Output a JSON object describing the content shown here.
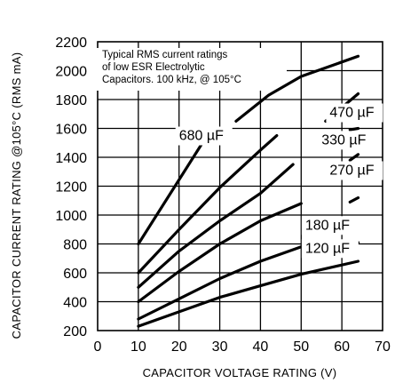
{
  "chart_data": {
    "type": "line",
    "title": "",
    "xlabel": "CAPACITOR VOLTAGE RATING (V)",
    "ylabel": "CAPACITOR CURRENT RATING @105°C (RMS mA)",
    "xlim": [
      0,
      70
    ],
    "ylim": [
      200,
      2200
    ],
    "xticks": [
      0,
      10,
      20,
      30,
      40,
      50,
      60,
      70
    ],
    "yticks": [
      200,
      400,
      600,
      800,
      1000,
      1200,
      1400,
      1600,
      1800,
      2000,
      2200
    ],
    "annotation": [
      "Typical RMS current ratings",
      "of low ESR Electrolytic",
      "Capacitors. 100 kHz, @ 105°C"
    ],
    "series": [
      {
        "name": "680 µF",
        "label_at": {
          "x": 20,
          "y": 1520
        },
        "points": [
          [
            10,
            800
          ],
          [
            28,
            1600
          ]
        ]
      },
      {
        "name": "470 µF",
        "label_at": {
          "x": 57,
          "y": 1680
        },
        "points": [
          [
            34,
            1650
          ],
          [
            42,
            1830
          ],
          [
            50,
            1960
          ],
          [
            64,
            2100
          ]
        ],
        "tail": [
          [
            56,
            1650
          ],
          [
            64,
            1840
          ]
        ]
      },
      {
        "name": "330 µF",
        "label_at": {
          "x": 55,
          "y": 1490
        },
        "points": [
          [
            10,
            600
          ],
          [
            20,
            900
          ],
          [
            30,
            1190
          ],
          [
            40,
            1450
          ],
          [
            44,
            1550
          ]
        ],
        "tail": [
          [
            62,
            1590
          ],
          [
            64,
            1600
          ]
        ]
      },
      {
        "name": "270 µF",
        "label_at": {
          "x": 57,
          "y": 1280
        },
        "points": [
          [
            10,
            500
          ],
          [
            20,
            750
          ],
          [
            30,
            960
          ],
          [
            40,
            1150
          ],
          [
            48,
            1350
          ]
        ],
        "tail": [
          [
            62,
            1380
          ],
          [
            64,
            1420
          ]
        ]
      },
      {
        "name": "180 µF",
        "label_at": {
          "x": 51,
          "y": 900
        },
        "points": [
          [
            10,
            400
          ],
          [
            20,
            610
          ],
          [
            30,
            800
          ],
          [
            40,
            960
          ],
          [
            50,
            1080
          ]
        ],
        "tail": [
          [
            62,
            1090
          ],
          [
            64,
            1120
          ]
        ]
      },
      {
        "name": "120 µF",
        "label_at": {
          "x": 51,
          "y": 740
        },
        "points": [
          [
            10,
            280
          ],
          [
            20,
            420
          ],
          [
            30,
            560
          ],
          [
            40,
            680
          ],
          [
            50,
            780
          ]
        ],
        "tail": [
          [
            62,
            790
          ],
          [
            64,
            810
          ]
        ]
      },
      {
        "name": "",
        "label_at": null,
        "points": [
          [
            10,
            230
          ],
          [
            20,
            330
          ],
          [
            30,
            430
          ],
          [
            40,
            510
          ],
          [
            50,
            590
          ],
          [
            64,
            680
          ]
        ]
      }
    ],
    "grid": true,
    "legend": "none"
  }
}
